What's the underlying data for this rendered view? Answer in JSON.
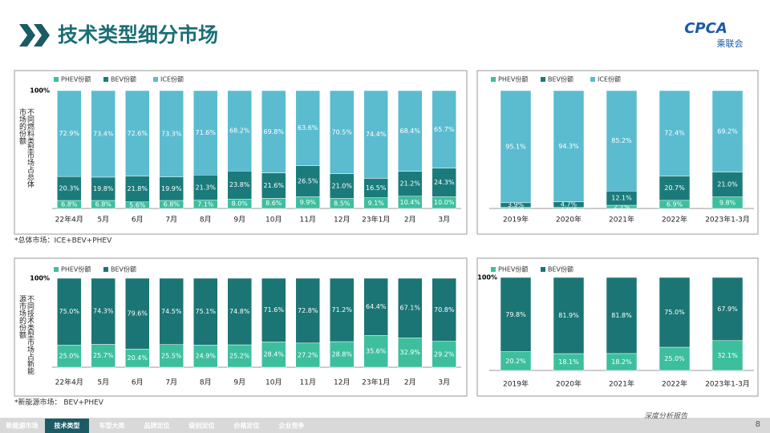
{
  "header": {
    "title": "技术类型细分市场",
    "logo": "CPCA",
    "logo_sub": "乘联会"
  },
  "chart_data": [
    {
      "type": "bar",
      "stacked": true,
      "legend": "top-left",
      "y_label": "不同燃料类型市场占总体市场的份额",
      "categories": [
        "22年4月",
        "5月",
        "6月",
        "7月",
        "8月",
        "9月",
        "10月",
        "11月",
        "12月",
        "23年1月",
        "2月",
        "3月"
      ],
      "ylim": [
        0,
        100
      ],
      "yticks": [
        {
          "value": 100,
          "label": "100%"
        }
      ],
      "series": [
        {
          "name": "PHEV份额",
          "color": "#3dbf9e",
          "values": [
            6.8,
            6.8,
            5.6,
            6.8,
            7.1,
            8.0,
            8.6,
            9.9,
            8.5,
            9.1,
            10.4,
            10.0
          ],
          "value_labels": [
            "6.8%",
            "6.8%",
            "5.6%",
            "6.8%",
            "7.1%",
            "8.0%",
            "8.6%",
            "9.9%",
            "8.5%",
            "9.1%",
            "10.4%",
            "10.0%"
          ]
        },
        {
          "name": "BEV份额",
          "color": "#1b7b7b",
          "values": [
            20.3,
            19.8,
            21.8,
            19.9,
            21.3,
            23.8,
            21.6,
            26.5,
            21.0,
            16.5,
            21.2,
            24.3
          ],
          "value_labels": [
            "20.3%",
            "19.8%",
            "21.8%",
            "19.9%",
            "21.3%",
            "23.8%",
            "21.6%",
            "26.5%",
            "21.0%",
            "16.5%",
            "21.2%",
            "24.3%"
          ]
        },
        {
          "name": "ICE份额",
          "color": "#5bbcd0",
          "values": [
            72.9,
            73.4,
            72.6,
            73.3,
            71.6,
            68.2,
            69.8,
            63.6,
            70.5,
            74.4,
            68.4,
            65.7
          ],
          "value_labels": [
            "72.9%",
            "73.4%",
            "72.6%",
            "73.3%",
            "71.6%",
            "68.2%",
            "69.8%",
            "63.6%",
            "70.5%",
            "74.4%",
            "68.4%",
            "65.7%"
          ]
        }
      ]
    },
    {
      "type": "bar",
      "stacked": true,
      "legend": "top-left",
      "categories": [
        "2019年",
        "2020年",
        "2021年",
        "2022年",
        "2023年1-3月"
      ],
      "ylim": [
        0,
        100
      ],
      "yticks": [],
      "series": [
        {
          "name": "PHEV份额",
          "color": "#3dbf9e",
          "values": [
            1.0,
            1.0,
            2.7,
            6.9,
            9.8
          ],
          "value_labels": [
            "1.0%",
            "1.0%",
            "2.7%",
            "6.9%",
            "9.8%"
          ]
        },
        {
          "name": "BEV份额",
          "color": "#1b7b7b",
          "values": [
            3.9,
            4.7,
            12.1,
            20.7,
            21.0
          ],
          "value_labels": [
            "3.9%",
            "4.7%",
            "12.1%",
            "20.7%",
            "21.0%"
          ]
        },
        {
          "name": "ICE份额",
          "color": "#5bbcd0",
          "values": [
            95.1,
            94.3,
            85.2,
            72.4,
            69.2
          ],
          "value_labels": [
            "95.1%",
            "94.3%",
            "85.2%",
            "72.4%",
            "69.2%"
          ]
        }
      ]
    },
    {
      "type": "bar",
      "stacked": true,
      "legend": "top-left",
      "y_label": "不同技术类型市场占新能源市场的份额",
      "categories": [
        "22年4月",
        "5月",
        "6月",
        "7月",
        "8月",
        "9月",
        "10月",
        "11月",
        "12月",
        "23年1月",
        "2月",
        "3月"
      ],
      "ylim": [
        0,
        100
      ],
      "yticks": [
        {
          "value": 100,
          "label": "100%"
        }
      ],
      "series": [
        {
          "name": "PHEV份额",
          "color": "#3dbf9e",
          "values": [
            25.0,
            25.7,
            20.4,
            25.5,
            24.9,
            25.2,
            28.4,
            27.2,
            28.8,
            35.6,
            32.9,
            29.2
          ],
          "value_labels": [
            "25.0%",
            "25.7%",
            "20.4%",
            "25.5%",
            "24.9%",
            "25.2%",
            "28.4%",
            "27.2%",
            "28.8%",
            "35.6%",
            "32.9%",
            "29.2%"
          ]
        },
        {
          "name": "BEV份额",
          "color": "#1b7574",
          "values": [
            75.0,
            74.3,
            79.6,
            74.5,
            75.1,
            74.8,
            71.6,
            72.8,
            71.2,
            64.4,
            67.1,
            70.8
          ],
          "value_labels": [
            "75.0%",
            "74.3%",
            "79.6%",
            "74.5%",
            "75.1%",
            "74.8%",
            "71.6%",
            "72.8%",
            "71.2%",
            "64.4%",
            "67.1%",
            "70.8%"
          ]
        }
      ]
    },
    {
      "type": "bar",
      "stacked": true,
      "legend": "top-left",
      "categories": [
        "2019年",
        "2020年",
        "2021年",
        "2022年",
        "2023年1-3月"
      ],
      "ylim": [
        0,
        100
      ],
      "yticks": [
        {
          "value": 100,
          "label": "100%"
        }
      ],
      "series": [
        {
          "name": "PHEV份额",
          "color": "#3dbf9e",
          "values": [
            20.2,
            18.1,
            18.2,
            25.0,
            32.1
          ],
          "value_labels": [
            "20.2%",
            "18.1%",
            "18.2%",
            "25.0%",
            "32.1%"
          ]
        },
        {
          "name": "BEV份额",
          "color": "#1b7574",
          "values": [
            79.8,
            81.9,
            81.8,
            75.0,
            67.9
          ],
          "value_labels": [
            "79.8%",
            "81.9%",
            "81.8%",
            "75.0%",
            "67.9%"
          ]
        }
      ]
    }
  ],
  "notes": [
    "*总体市场：ICE+BEV+PHEV",
    "*新能源市场：  BEV+PHEV"
  ],
  "nav": [
    "新能源市场",
    "技术类型",
    "车型大类",
    "品牌定位",
    "级别定位",
    "价格定位",
    "企业竞争"
  ],
  "footer": {
    "tagline": "深度分析报告",
    "page": "8"
  }
}
